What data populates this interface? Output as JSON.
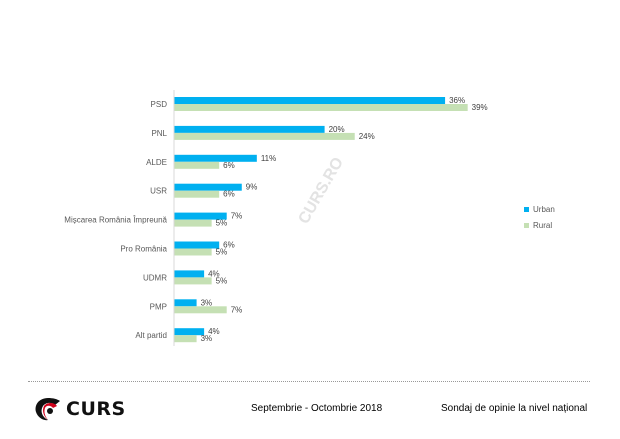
{
  "chart_data": {
    "type": "bar",
    "orientation": "horizontal",
    "categories": [
      "PSD",
      "PNL",
      "ALDE",
      "USR",
      "Mișcarea România Împreună",
      "Pro România",
      "UDMR",
      "PMP",
      "Alt partid"
    ],
    "series": [
      {
        "name": "Urban",
        "color": "#00b0f0",
        "values": [
          36,
          20,
          11,
          9,
          7,
          6,
          4,
          3,
          4
        ]
      },
      {
        "name": "Rural",
        "color": "#c5e0b4",
        "values": [
          39,
          24,
          6,
          6,
          5,
          5,
          5,
          7,
          3
        ]
      }
    ],
    "unit": "%",
    "legend_position": "right",
    "grid": false,
    "watermark": "CURS.RO"
  },
  "footer": {
    "logo": "CURS",
    "period": "Septembrie - Octombrie 2018",
    "title": "Sondaj de opinie la nivel național"
  }
}
